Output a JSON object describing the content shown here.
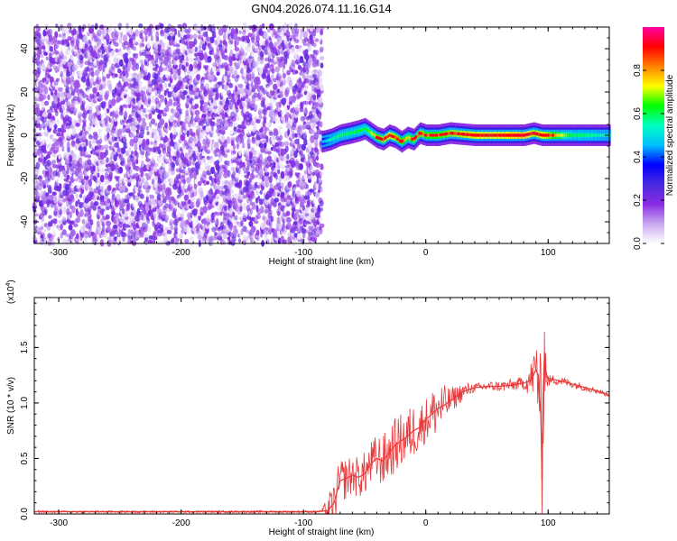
{
  "title": "GN04.2026.074.11.16.G14",
  "chart_data": [
    {
      "type": "heatmap",
      "xlabel": "Height of straight line (km)",
      "ylabel": "Frequency (Hz)",
      "xlim": [
        -320,
        150
      ],
      "ylim": [
        -50,
        50
      ],
      "x_ticks": [
        -300,
        -200,
        -100,
        0,
        100
      ],
      "y_ticks": [
        -40,
        -20,
        0,
        20,
        40
      ],
      "colorbar": {
        "label": "Normalized spectral amplitude",
        "range": [
          0,
          1
        ],
        "ticks": [
          "0.0",
          "0.2",
          "0.4",
          "0.6",
          "0.8"
        ],
        "tick_values": [
          0.0,
          0.2,
          0.4,
          0.6,
          0.8
        ],
        "colormap": [
          "#ffffff",
          "#c8a8f0",
          "#8a2be2",
          "#4b2be0",
          "#0000ff",
          "#00bfff",
          "#00ffc0",
          "#00ff00",
          "#ffff00",
          "#ff8000",
          "#ff0000",
          "#ff00a0"
        ]
      },
      "noise_region": {
        "x_range": [
          -320,
          -85
        ],
        "freq_range": [
          -50,
          50
        ],
        "amplitude_range": [
          0.0,
          0.25
        ]
      },
      "signal_track": {
        "x": [
          -85,
          -78,
          -70,
          -62,
          -55,
          -50,
          -45,
          -40,
          -35,
          -30,
          -25,
          -20,
          -15,
          -10,
          -5,
          0,
          10,
          20,
          40,
          60,
          80,
          88,
          95,
          100,
          120,
          150
        ],
        "freq": [
          -3,
          -2,
          0,
          1,
          2,
          3,
          1,
          -1,
          -2,
          0,
          -1,
          -3,
          -1,
          -2,
          1,
          0,
          0,
          1,
          0,
          0,
          0,
          1,
          0,
          0,
          0,
          0
        ],
        "peak_amplitude": [
          0.45,
          0.55,
          0.6,
          0.6,
          0.62,
          0.6,
          0.7,
          0.8,
          0.85,
          0.9,
          0.85,
          0.8,
          0.75,
          0.8,
          0.85,
          0.8,
          0.8,
          0.85,
          0.9,
          0.9,
          0.95,
          0.85,
          0.9,
          0.85,
          0.6,
          0.55
        ]
      }
    },
    {
      "type": "line",
      "xlabel": "Height of straight line (km)",
      "ylabel": "SNR (10 * v/v)",
      "y_multiplier_label": "(x10",
      "y_multiplier_exp": "4",
      "xlim": [
        -320,
        150
      ],
      "ylim": [
        0,
        1.95
      ],
      "x_ticks": [
        -300,
        -200,
        -100,
        0,
        100
      ],
      "y_ticks": [
        "0.0",
        "0.5",
        "1.0",
        "1.5"
      ],
      "y_tick_values": [
        0.0,
        0.5,
        1.0,
        1.5
      ],
      "color": "#e8393a",
      "series": [
        {
          "x": [
            -320,
            -290,
            -260,
            -230,
            -200,
            -170,
            -140,
            -110,
            -90,
            -80,
            -75,
            -70,
            -65,
            -60,
            -55,
            -50,
            -45,
            -40,
            -35,
            -30,
            -25,
            -20,
            -15,
            -10,
            -5,
            0,
            5,
            10,
            15,
            20,
            25,
            30,
            35,
            40,
            45,
            50,
            60,
            70,
            80,
            85,
            88,
            90,
            92,
            94,
            95,
            96,
            97,
            98,
            100,
            105,
            110,
            120,
            130,
            140,
            150
          ],
          "y": [
            0.02,
            0.02,
            0.02,
            0.02,
            0.02,
            0.02,
            0.02,
            0.02,
            0.02,
            0.03,
            0.1,
            0.3,
            0.32,
            0.35,
            0.33,
            0.36,
            0.45,
            0.5,
            0.48,
            0.55,
            0.62,
            0.66,
            0.7,
            0.75,
            0.78,
            0.85,
            0.9,
            0.95,
            0.98,
            1.02,
            1.06,
            1.1,
            1.12,
            1.14,
            1.14,
            1.15,
            1.15,
            1.16,
            1.18,
            1.2,
            1.25,
            1.3,
            1.25,
            0.9,
            0.3,
            1.1,
            1.45,
            1.3,
            1.2,
            1.21,
            1.2,
            1.17,
            1.14,
            1.11,
            1.07
          ]
        }
      ],
      "noise_envelope": {
        "x": [
          -320,
          -85,
          -80,
          -70,
          -60,
          -50,
          -40,
          -30,
          -20,
          -10,
          0,
          10,
          20,
          40,
          80,
          88,
          92,
          96,
          100,
          150
        ],
        "amp": [
          0.01,
          0.01,
          0.15,
          0.2,
          0.18,
          0.2,
          0.22,
          0.25,
          0.25,
          0.25,
          0.2,
          0.25,
          0.12,
          0.04,
          0.06,
          0.2,
          0.45,
          0.5,
          0.05,
          0.02
        ]
      }
    }
  ]
}
